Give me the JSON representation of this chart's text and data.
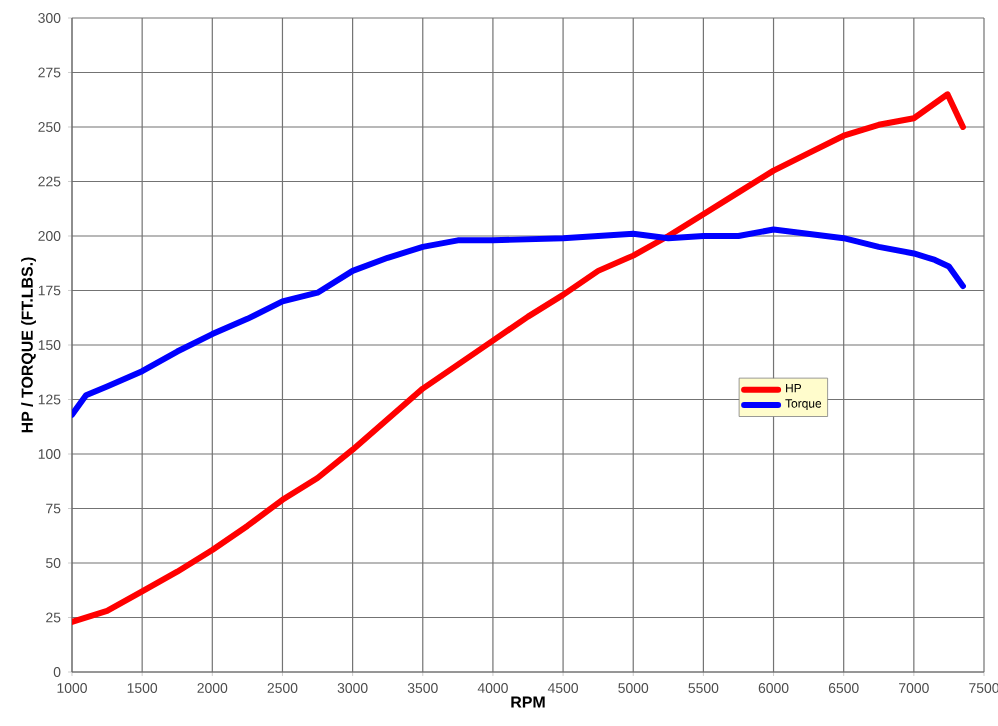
{
  "chart_data": {
    "type": "line",
    "xlabel": "RPM",
    "ylabel": "HP / TORQUE (FT.LBS.)",
    "xlim": [
      1000,
      7500
    ],
    "xticks": [
      1000,
      1500,
      2000,
      2500,
      3000,
      3500,
      4000,
      4500,
      5000,
      5500,
      6000,
      6500,
      7000,
      7500
    ],
    "ylim": [
      0,
      300
    ],
    "yticks": [
      0,
      25,
      50,
      75,
      100,
      125,
      150,
      175,
      200,
      225,
      250,
      275,
      300
    ],
    "grid": true,
    "legend": "right",
    "marker": "none",
    "line_style": "solid",
    "series": [
      {
        "name": "HP",
        "color": "#ff0000",
        "x": [
          1000,
          1250,
          1500,
          1750,
          2000,
          2250,
          2500,
          2750,
          3000,
          3250,
          3500,
          3750,
          4000,
          4250,
          4500,
          4750,
          5000,
          5250,
          5500,
          5750,
          6000,
          6250,
          6500,
          6750,
          7000,
          7240,
          7350
        ],
        "values": [
          23,
          28,
          37,
          46,
          56,
          67,
          79,
          89,
          102,
          116,
          130,
          141,
          152,
          163,
          173,
          184,
          191,
          200,
          210,
          220,
          230,
          238,
          246,
          251,
          254,
          265,
          250
        ]
      },
      {
        "name": "Torque",
        "color": "#0000ff",
        "x": [
          1000,
          1100,
          1250,
          1500,
          1750,
          2000,
          2250,
          2500,
          2750,
          3000,
          3250,
          3500,
          3750,
          4000,
          4500,
          5000,
          5250,
          5500,
          5750,
          6000,
          6250,
          6500,
          6750,
          7000,
          7150,
          7250,
          7350
        ],
        "values": [
          118,
          127,
          131,
          138,
          147,
          155,
          162,
          170,
          174,
          184,
          190,
          195,
          198,
          198,
          199,
          201,
          199,
          200,
          200,
          203,
          201,
          199,
          195,
          192,
          189,
          186,
          177
        ]
      }
    ]
  }
}
